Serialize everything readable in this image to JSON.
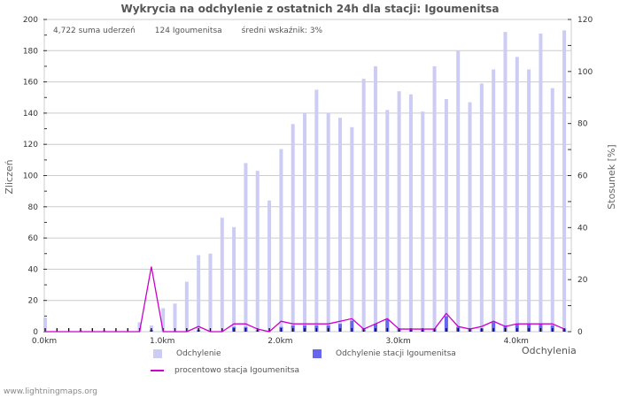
{
  "header": {
    "title": "Wykrycia na odchylenie z ostatnich 24h dla stacji: Igoumenitsa"
  },
  "stats": {
    "total": "4,722 suma uderzeń",
    "station": "124 Igoumenitsa",
    "avg": "średni wskaźnik: 3%"
  },
  "legend": {
    "odchylenie": "Odchylenie",
    "station": "Odchylenie stacji Igoumenitsa",
    "percent": "procentowo stacja Igoumenitsa"
  },
  "footer": {
    "source": "www.lightningmaps.org"
  },
  "colors": {
    "odchylenie": "#ccccf5",
    "station": "#6666ee",
    "percent": "#cc00cc",
    "grid": "#cccccc",
    "axis_text": "#333333"
  },
  "chart_data": {
    "type": "bar",
    "title": "Wykrycia na odchylenie z ostatnich 24h dla stacji: Igoumenitsa",
    "xlabel": "Odchylenia",
    "ylabel": "Zliczeń",
    "y2label": "Stosunek [%]",
    "ylim": [
      0,
      200
    ],
    "y2lim": [
      0,
      120
    ],
    "yticks": [
      0,
      20,
      40,
      60,
      80,
      100,
      120,
      140,
      160,
      180,
      200
    ],
    "y2ticks": [
      0,
      20,
      40,
      60,
      80,
      100,
      120
    ],
    "xticks": [
      "0.0km",
      "1.0km",
      "2.0km",
      "3.0km",
      "4.0km"
    ],
    "grid": true,
    "legend_position": "bottom",
    "categories": [
      "0.0",
      "0.1",
      "0.2",
      "0.3",
      "0.4",
      "0.5",
      "0.6",
      "0.7",
      "0.8",
      "0.9",
      "1.0",
      "1.1",
      "1.2",
      "1.3",
      "1.4",
      "1.5",
      "1.6",
      "1.7",
      "1.8",
      "1.9",
      "2.0",
      "2.1",
      "2.2",
      "2.3",
      "2.4",
      "2.5",
      "2.6",
      "2.7",
      "2.8",
      "2.9",
      "3.0",
      "3.1",
      "3.2",
      "3.3",
      "3.4",
      "3.5",
      "3.6",
      "3.7",
      "3.8",
      "3.9",
      "4.0",
      "4.1",
      "4.2",
      "4.3",
      "4.4"
    ],
    "series": [
      {
        "name": "Odchylenie",
        "axis": "left",
        "type": "bar",
        "values": [
          9,
          0,
          0,
          1,
          0,
          1,
          0,
          0,
          6,
          4,
          15,
          18,
          32,
          49,
          50,
          73,
          67,
          108,
          103,
          84,
          117,
          133,
          140,
          155,
          140,
          137,
          131,
          162,
          170,
          142,
          154,
          152,
          141,
          170,
          149,
          180,
          147,
          159,
          168,
          192,
          176,
          168,
          191,
          156,
          193
        ]
      },
      {
        "name": "Odchylenie stacji Igoumenitsa",
        "axis": "left",
        "type": "bar",
        "values": [
          0,
          0,
          0,
          0,
          0,
          0,
          0,
          0,
          0,
          1,
          0,
          0,
          0,
          1,
          0,
          0,
          3,
          3,
          1,
          0,
          3,
          4,
          4,
          4,
          4,
          5,
          7,
          2,
          5,
          8,
          2,
          2,
          2,
          2,
          10,
          3,
          2,
          2,
          6,
          4,
          5,
          5,
          5,
          4,
          2
        ]
      },
      {
        "name": "procentowo stacja Igoumenitsa",
        "axis": "right",
        "type": "line",
        "values": [
          0,
          0,
          0,
          0,
          0,
          0,
          0,
          0,
          0,
          25,
          0,
          0,
          0,
          2,
          0,
          0,
          3,
          3,
          1,
          0,
          4,
          3,
          3,
          3,
          3,
          4,
          5,
          1,
          3,
          5,
          1,
          1,
          1,
          1,
          7,
          2,
          1,
          2,
          4,
          2,
          3,
          3,
          3,
          3,
          1
        ]
      }
    ]
  }
}
